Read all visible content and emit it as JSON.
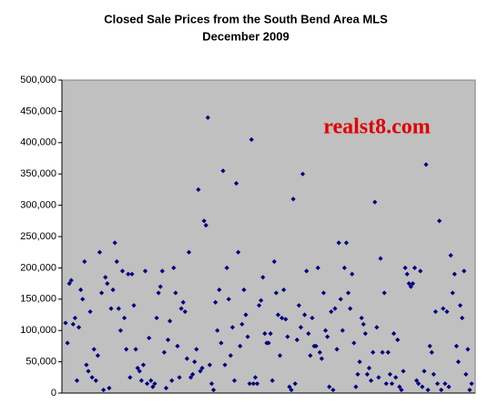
{
  "chart_data": {
    "type": "scatter",
    "title": "Closed Sale Prices from the South Bend Area MLS",
    "subtitle": "December 2009",
    "annotation": "realst8.com",
    "color": "#000080",
    "plot_background": "#c0c0c0",
    "values": [
      112000,
      80000,
      175000,
      180000,
      110000,
      120000,
      20000,
      105000,
      165000,
      150000,
      210000,
      45000,
      35000,
      130000,
      25000,
      70000,
      20000,
      60000,
      225000,
      160000,
      5000,
      185000,
      175000,
      8000,
      135000,
      165000,
      240000,
      210000,
      135000,
      100000,
      195000,
      120000,
      70000,
      190000,
      25000,
      190000,
      140000,
      70000,
      40000,
      35000,
      20000,
      45000,
      195000,
      15000,
      88000,
      20000,
      10000,
      15000,
      120000,
      160000,
      170000,
      195000,
      65000,
      8000,
      85000,
      115000,
      20000,
      200000,
      160000,
      75000,
      25000,
      135000,
      145000,
      130000,
      55000,
      225000,
      25000,
      30000,
      50000,
      70000,
      325000,
      35000,
      40000,
      275000,
      268000,
      440000,
      45000,
      15000,
      5000,
      145000,
      100000,
      165000,
      80000,
      355000,
      45000,
      200000,
      150000,
      60000,
      105000,
      20000,
      335000,
      225000,
      75000,
      110000,
      165000,
      125000,
      90000,
      15000,
      405000,
      15000,
      25000,
      15000,
      140000,
      148000,
      185000,
      95000,
      80000,
      80000,
      95000,
      20000,
      210000,
      160000,
      125000,
      60000,
      120000,
      165000,
      118000,
      90000,
      10000,
      5000,
      310000,
      15000,
      85000,
      140000,
      105000,
      350000,
      125000,
      195000,
      95000,
      60000,
      120000,
      75000,
      75000,
      200000,
      65000,
      55000,
      160000,
      100000,
      90000,
      10000,
      130000,
      5000,
      135000,
      70000,
      240000,
      150000,
      100000,
      200000,
      240000,
      160000,
      135000,
      190000,
      80000,
      10000,
      30000,
      50000,
      120000,
      110000,
      95000,
      30000,
      40000,
      20000,
      65000,
      305000,
      105000,
      25000,
      215000,
      65000,
      160000,
      15000,
      65000,
      30000,
      15000,
      95000,
      25000,
      85000,
      10000,
      5000,
      35000,
      200000,
      190000,
      175000,
      170000,
      175000,
      200000,
      20000,
      15000,
      195000,
      10000,
      35000,
      365000,
      5000,
      75000,
      65000,
      30000,
      130000,
      15000,
      275000,
      5000,
      135000,
      15000,
      130000,
      10000,
      220000,
      160000,
      190000,
      75000,
      50000,
      140000,
      120000,
      195000,
      30000,
      70000,
      5000,
      15000
    ],
    "ylim": [
      0,
      500000
    ],
    "yticks": [
      0,
      {
        "value": 50000,
        "label": "50,000"
      },
      {
        "value": 100000,
        "label": "100,000"
      },
      {
        "value": 150000,
        "label": "150,000"
      },
      {
        "value": 200000,
        "label": "200,000"
      },
      {
        "value": 250000,
        "label": "250,000"
      },
      {
        "value": 300000,
        "label": "300,000"
      },
      {
        "value": 350000,
        "label": "350,000"
      },
      {
        "value": 400000,
        "label": "400,000"
      },
      {
        "value": 450000,
        "label": "450,000"
      },
      {
        "value": 500000,
        "label": "500,000"
      }
    ]
  }
}
